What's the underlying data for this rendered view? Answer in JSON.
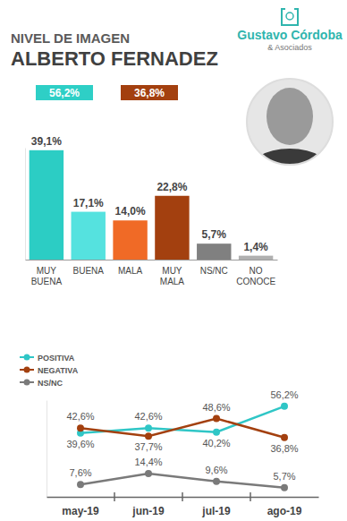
{
  "header": {
    "brand": "Gustavo Córdoba",
    "brand_sub": "& Asociados"
  },
  "chart_data": [
    {
      "type": "bar",
      "title": "NIVEL DE IMAGEN",
      "subtitle": "ALBERTO FERNADEZ",
      "annotations": [
        {
          "text": "56,2%",
          "color": "#2ecfc6"
        },
        {
          "text": "36,8%",
          "color": "#a3400f"
        }
      ],
      "categories": [
        "MUY BUENA",
        "BUENA",
        "MALA",
        "MUY MALA",
        "NS/NC",
        "NO CONOCE"
      ],
      "values": [
        39.1,
        17.1,
        14.0,
        22.8,
        5.7,
        1.4
      ],
      "value_labels": [
        "39,1%",
        "17,1%",
        "14,0%",
        "22,8%",
        "5,7%",
        "1,4%"
      ],
      "colors": [
        "#2ccdc4",
        "#55e2df",
        "#f06a26",
        "#a3400f",
        "#808080",
        "#b0b0b0"
      ],
      "ylim": [
        0,
        40
      ],
      "yticks": [],
      "data_labels": true,
      "tick_labels": "x"
    },
    {
      "type": "line",
      "categories": [
        "may-19",
        "jun-19",
        "jul-19",
        "ago-19"
      ],
      "series": [
        {
          "name": "POSITIVA",
          "color": "#2fc6c6",
          "values": [
            39.6,
            42.6,
            40.2,
            56.2
          ],
          "value_labels": [
            "39,6%",
            "42,6%",
            "40,2%",
            "56,2%"
          ]
        },
        {
          "name": "NEGATIVA",
          "color": "#a3400f",
          "values": [
            42.6,
            37.7,
            48.6,
            36.8
          ],
          "value_labels": [
            "42,6%",
            "37,7%",
            "48,6%",
            "36,8%"
          ]
        },
        {
          "name": "NS/NC",
          "color": "#7a7a7a",
          "values": [
            7.6,
            14.4,
            9.6,
            5.7
          ],
          "value_labels": [
            "7,6%",
            "14,4%",
            "9,6%",
            "5,7%"
          ]
        }
      ],
      "ylim": [
        0,
        60
      ],
      "yticks": [],
      "data_labels": true,
      "legend": "top-left",
      "tick_labels": "x",
      "marker": "circle"
    }
  ]
}
